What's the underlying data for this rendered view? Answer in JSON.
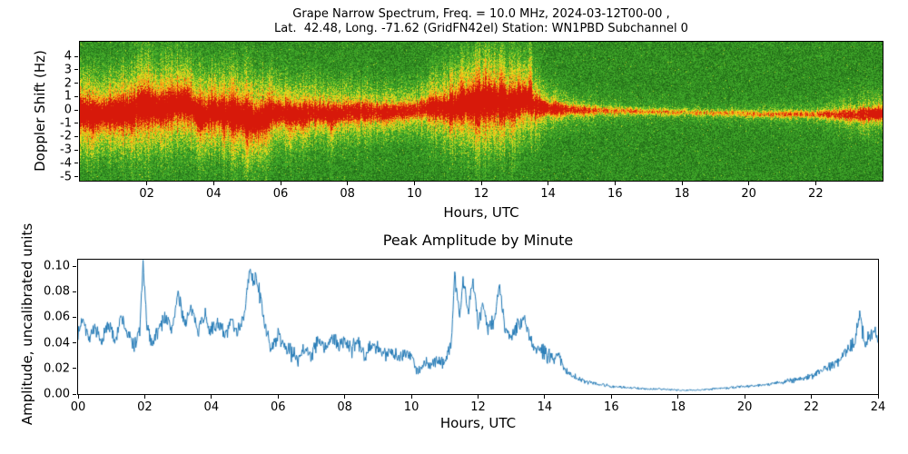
{
  "figure_background": "#ffffff",
  "chart_data": [
    {
      "type": "heatmap",
      "title_line1": "Grape Narrow Spectrum, Freq. = 10.0 MHz, 2024-03-12T00-00 ,",
      "title_line2": "Lat.  42.48, Long. -71.62 (GridFN42el) Station: WN1PBD Subchannel 0",
      "xlabel": "Hours, UTC",
      "ylabel": "Doppler Shift (Hz)",
      "xlim": [
        0,
        24
      ],
      "ylim": [
        -5.3,
        5.1
      ],
      "xticks": {
        "values": [
          2,
          4,
          6,
          8,
          10,
          12,
          14,
          16,
          18,
          20,
          22
        ],
        "labels": [
          "02",
          "04",
          "06",
          "08",
          "10",
          "12",
          "14",
          "16",
          "18",
          "20",
          "22"
        ]
      },
      "yticks": {
        "values": [
          4,
          3,
          2,
          1,
          0,
          -1,
          -2,
          -3,
          -4,
          -5
        ],
        "labels": [
          "4",
          "3",
          "2",
          "1",
          "0",
          "-1",
          "-2",
          "-3",
          "-4",
          "-5"
        ]
      },
      "colormap_positions": [
        0,
        0.45,
        0.62,
        0.8,
        1
      ],
      "colormap_stops": [
        "#0a3c0a",
        "#46b42d",
        "#ebe11e",
        "#fa9614",
        "#d7190a"
      ],
      "description": "Doppler spectrogram: speckled green noise background with a bright yellow/red ridge near 0 Hz; ridge is wide and strong 00-06 and 11-13.5 UTC, thin and faint 15-22 UTC, strengthening again after 23 UTC; vertical yellow streaks extend downward in the morning hours and upward around 11.5-13.5 UTC.",
      "ridge_keypoints": [
        [
          0,
          -0.2
        ],
        [
          0.5,
          -0.35
        ],
        [
          1,
          -0.15
        ],
        [
          1.5,
          -0.1
        ],
        [
          1.9,
          0.3
        ],
        [
          2.1,
          0.35
        ],
        [
          2.4,
          0.05
        ],
        [
          2.8,
          0.45
        ],
        [
          3.2,
          0.5
        ],
        [
          3.6,
          -0.4
        ],
        [
          4,
          -0.1
        ],
        [
          4.5,
          -0.25
        ],
        [
          5,
          -0.55
        ],
        [
          5.3,
          -0.9
        ],
        [
          5.6,
          -0.2
        ],
        [
          6,
          -0.15
        ],
        [
          6.5,
          -0.35
        ],
        [
          7,
          -0.15
        ],
        [
          7.5,
          -0.3
        ],
        [
          8,
          -0.15
        ],
        [
          8.5,
          -0.1
        ],
        [
          9,
          -0.2
        ],
        [
          9.5,
          -0.1
        ],
        [
          10,
          0
        ],
        [
          10.5,
          0.25
        ],
        [
          11,
          0.15
        ],
        [
          11.5,
          0.45
        ],
        [
          12,
          0.55
        ],
        [
          12.3,
          0.7
        ],
        [
          12.7,
          0.5
        ],
        [
          13,
          0.55
        ],
        [
          13.3,
          0.8
        ],
        [
          13.6,
          0.3
        ],
        [
          14,
          0.15
        ],
        [
          14.5,
          0.05
        ],
        [
          15,
          0
        ],
        [
          16,
          -0.05
        ],
        [
          17,
          -0.1
        ],
        [
          18,
          -0.15
        ],
        [
          19,
          -0.2
        ],
        [
          20,
          -0.25
        ],
        [
          21,
          -0.3
        ],
        [
          22,
          -0.3
        ],
        [
          23,
          -0.35
        ],
        [
          23.5,
          -0.3
        ],
        [
          24,
          -0.25
        ]
      ],
      "intensity_keypoints": [
        [
          0,
          0.95
        ],
        [
          1,
          0.95
        ],
        [
          2,
          1
        ],
        [
          3,
          0.95
        ],
        [
          4,
          0.9
        ],
        [
          5,
          1
        ],
        [
          5.5,
          0.95
        ],
        [
          6,
          0.85
        ],
        [
          7,
          0.8
        ],
        [
          8,
          0.8
        ],
        [
          9,
          0.75
        ],
        [
          10,
          0.7
        ],
        [
          11,
          0.85
        ],
        [
          11.5,
          1
        ],
        [
          12,
          1
        ],
        [
          12.5,
          1
        ],
        [
          13,
          0.95
        ],
        [
          13.5,
          0.9
        ],
        [
          14,
          0.7
        ],
        [
          15,
          0.55
        ],
        [
          16,
          0.45
        ],
        [
          17,
          0.4
        ],
        [
          18,
          0.38
        ],
        [
          19,
          0.38
        ],
        [
          20,
          0.4
        ],
        [
          21,
          0.45
        ],
        [
          22,
          0.5
        ],
        [
          23,
          0.7
        ],
        [
          23.5,
          0.9
        ],
        [
          24,
          0.95
        ]
      ],
      "width_keypoints": [
        [
          0,
          0.55
        ],
        [
          1,
          0.5
        ],
        [
          2,
          0.6
        ],
        [
          3,
          0.55
        ],
        [
          4,
          0.5
        ],
        [
          5,
          0.6
        ],
        [
          6,
          0.45
        ],
        [
          7,
          0.4
        ],
        [
          8,
          0.4
        ],
        [
          9,
          0.35
        ],
        [
          10,
          0.35
        ],
        [
          11,
          0.5
        ],
        [
          12,
          0.65
        ],
        [
          12.5,
          0.6
        ],
        [
          13,
          0.55
        ],
        [
          13.5,
          0.5
        ],
        [
          14,
          0.3
        ],
        [
          15,
          0.22
        ],
        [
          16,
          0.18
        ],
        [
          17,
          0.15
        ],
        [
          18,
          0.15
        ],
        [
          19,
          0.15
        ],
        [
          20,
          0.15
        ],
        [
          21,
          0.16
        ],
        [
          22,
          0.18
        ],
        [
          23,
          0.25
        ],
        [
          24,
          0.3
        ]
      ],
      "halo_keypoints": [
        [
          0,
          0.5
        ],
        [
          3,
          0.5
        ],
        [
          5,
          0.52
        ],
        [
          6,
          0.45
        ],
        [
          8,
          0.35
        ],
        [
          10,
          0.3
        ],
        [
          11,
          0.45
        ],
        [
          12,
          0.55
        ],
        [
          13,
          0.5
        ],
        [
          14,
          0.25
        ],
        [
          15,
          0.15
        ],
        [
          16,
          0.1
        ],
        [
          18,
          0.08
        ],
        [
          20,
          0.1
        ],
        [
          22,
          0.12
        ],
        [
          23,
          0.2
        ],
        [
          24,
          0.25
        ]
      ],
      "spikes": [
        [
          0.35,
          0.05,
          -1,
          0.35,
          1.8
        ],
        [
          1.0,
          0.04,
          -1,
          0.3,
          1.5
        ],
        [
          1.55,
          0.05,
          -1,
          0.4,
          2.2
        ],
        [
          2.1,
          0.04,
          -1,
          0.3,
          1.5
        ],
        [
          2.75,
          0.04,
          -1,
          0.25,
          1.2
        ],
        [
          3.5,
          0.04,
          -1,
          0.3,
          1.6
        ],
        [
          4.3,
          0.05,
          -1,
          0.3,
          1.5
        ],
        [
          5.0,
          0.05,
          -1,
          0.35,
          2.0
        ],
        [
          5.55,
          0.06,
          -1,
          0.45,
          2.5
        ],
        [
          6.3,
          0.05,
          -1,
          0.4,
          2.0
        ],
        [
          6.65,
          0.04,
          -1,
          0.3,
          1.5
        ],
        [
          7.5,
          0.05,
          -1,
          0.35,
          1.8
        ],
        [
          8.3,
          0.04,
          -1,
          0.25,
          1.2
        ],
        [
          9.05,
          0.04,
          -1,
          0.25,
          1.2
        ],
        [
          9.8,
          0.03,
          -1,
          0.2,
          1.0
        ],
        [
          10.4,
          0.04,
          -1,
          0.25,
          1.3
        ],
        [
          11.4,
          0.05,
          1,
          0.4,
          1.8
        ],
        [
          12.1,
          0.05,
          1,
          0.35,
          1.6
        ],
        [
          12.6,
          0.05,
          1,
          0.35,
          1.6
        ],
        [
          13.1,
          0.04,
          1,
          0.3,
          1.5
        ],
        [
          13.45,
          0.06,
          1,
          0.55,
          2.8
        ],
        [
          14.2,
          0.03,
          1,
          0.2,
          1.0
        ],
        [
          22.8,
          0.04,
          1,
          0.18,
          1.2
        ]
      ]
    },
    {
      "type": "line",
      "title": "Peak Amplitude by Minute",
      "xlabel": "Hours, UTC",
      "ylabel": "Amplitude, uncalibrated units",
      "xlim": [
        0,
        24
      ],
      "ylim": [
        0,
        0.105
      ],
      "xticks": {
        "values": [
          0,
          2,
          4,
          6,
          8,
          10,
          12,
          14,
          16,
          18,
          20,
          22,
          24
        ],
        "labels": [
          "00",
          "02",
          "04",
          "06",
          "08",
          "10",
          "12",
          "14",
          "16",
          "18",
          "20",
          "22",
          "24"
        ]
      },
      "yticks": {
        "values": [
          0,
          0.02,
          0.04,
          0.06,
          0.08,
          0.1
        ],
        "labels": [
          "0.00",
          "0.02",
          "0.04",
          "0.06",
          "0.08",
          "0.10"
        ]
      },
      "line_color": "#1f77b4",
      "series": [
        {
          "name": "peak_amplitude",
          "points": [
            [
              0,
              0.045
            ],
            [
              0.15,
              0.062
            ],
            [
              0.3,
              0.044
            ],
            [
              0.5,
              0.052
            ],
            [
              0.7,
              0.038
            ],
            [
              0.9,
              0.056
            ],
            [
              1.1,
              0.042
            ],
            [
              1.3,
              0.06
            ],
            [
              1.5,
              0.046
            ],
            [
              1.7,
              0.038
            ],
            [
              1.85,
              0.05
            ],
            [
              1.95,
              0.102
            ],
            [
              2.05,
              0.056
            ],
            [
              2.2,
              0.04
            ],
            [
              2.4,
              0.05
            ],
            [
              2.6,
              0.061
            ],
            [
              2.8,
              0.05
            ],
            [
              3,
              0.078
            ],
            [
              3.2,
              0.056
            ],
            [
              3.4,
              0.065
            ],
            [
              3.6,
              0.052
            ],
            [
              3.8,
              0.062
            ],
            [
              4,
              0.048
            ],
            [
              4.2,
              0.057
            ],
            [
              4.4,
              0.044
            ],
            [
              4.6,
              0.058
            ],
            [
              4.8,
              0.05
            ],
            [
              5,
              0.063
            ],
            [
              5.15,
              0.098
            ],
            [
              5.25,
              0.086
            ],
            [
              5.35,
              0.092
            ],
            [
              5.5,
              0.07
            ],
            [
              5.65,
              0.048
            ],
            [
              5.8,
              0.035
            ],
            [
              6,
              0.046
            ],
            [
              6.2,
              0.038
            ],
            [
              6.4,
              0.032
            ],
            [
              6.6,
              0.028
            ],
            [
              6.8,
              0.037
            ],
            [
              7,
              0.03
            ],
            [
              7.2,
              0.042
            ],
            [
              7.4,
              0.035
            ],
            [
              7.6,
              0.044
            ],
            [
              7.8,
              0.038
            ],
            [
              8,
              0.042
            ],
            [
              8.2,
              0.035
            ],
            [
              8.4,
              0.04
            ],
            [
              8.6,
              0.032
            ],
            [
              8.8,
              0.038
            ],
            [
              9,
              0.035
            ],
            [
              9.2,
              0.03
            ],
            [
              9.4,
              0.035
            ],
            [
              9.6,
              0.028
            ],
            [
              9.8,
              0.032
            ],
            [
              10,
              0.03
            ],
            [
              10.2,
              0.017
            ],
            [
              10.4,
              0.025
            ],
            [
              10.6,
              0.022
            ],
            [
              10.8,
              0.028
            ],
            [
              11,
              0.025
            ],
            [
              11.2,
              0.04
            ],
            [
              11.3,
              0.095
            ],
            [
              11.45,
              0.06
            ],
            [
              11.55,
              0.09
            ],
            [
              11.7,
              0.065
            ],
            [
              11.85,
              0.09
            ],
            [
              12,
              0.056
            ],
            [
              12.15,
              0.07
            ],
            [
              12.3,
              0.05
            ],
            [
              12.5,
              0.06
            ],
            [
              12.65,
              0.085
            ],
            [
              12.8,
              0.05
            ],
            [
              13,
              0.045
            ],
            [
              13.2,
              0.055
            ],
            [
              13.4,
              0.06
            ],
            [
              13.6,
              0.04
            ],
            [
              13.8,
              0.035
            ],
            [
              14,
              0.032
            ],
            [
              14.2,
              0.028
            ],
            [
              14.4,
              0.03
            ],
            [
              14.6,
              0.02
            ],
            [
              14.8,
              0.015
            ],
            [
              15,
              0.012
            ],
            [
              15.3,
              0.01
            ],
            [
              15.6,
              0.008
            ],
            [
              16,
              0.006
            ],
            [
              16.5,
              0.005
            ],
            [
              17,
              0.004
            ],
            [
              17.5,
              0.004
            ],
            [
              18,
              0.003
            ],
            [
              18.5,
              0.003
            ],
            [
              19,
              0.004
            ],
            [
              19.5,
              0.005
            ],
            [
              20,
              0.006
            ],
            [
              20.5,
              0.007
            ],
            [
              21,
              0.009
            ],
            [
              21.5,
              0.011
            ],
            [
              22,
              0.014
            ],
            [
              22.3,
              0.018
            ],
            [
              22.6,
              0.022
            ],
            [
              22.9,
              0.028
            ],
            [
              23.1,
              0.035
            ],
            [
              23.3,
              0.04
            ],
            [
              23.45,
              0.062
            ],
            [
              23.6,
              0.038
            ],
            [
              23.75,
              0.046
            ],
            [
              23.9,
              0.05
            ],
            [
              24,
              0.042
            ]
          ]
        }
      ]
    }
  ]
}
